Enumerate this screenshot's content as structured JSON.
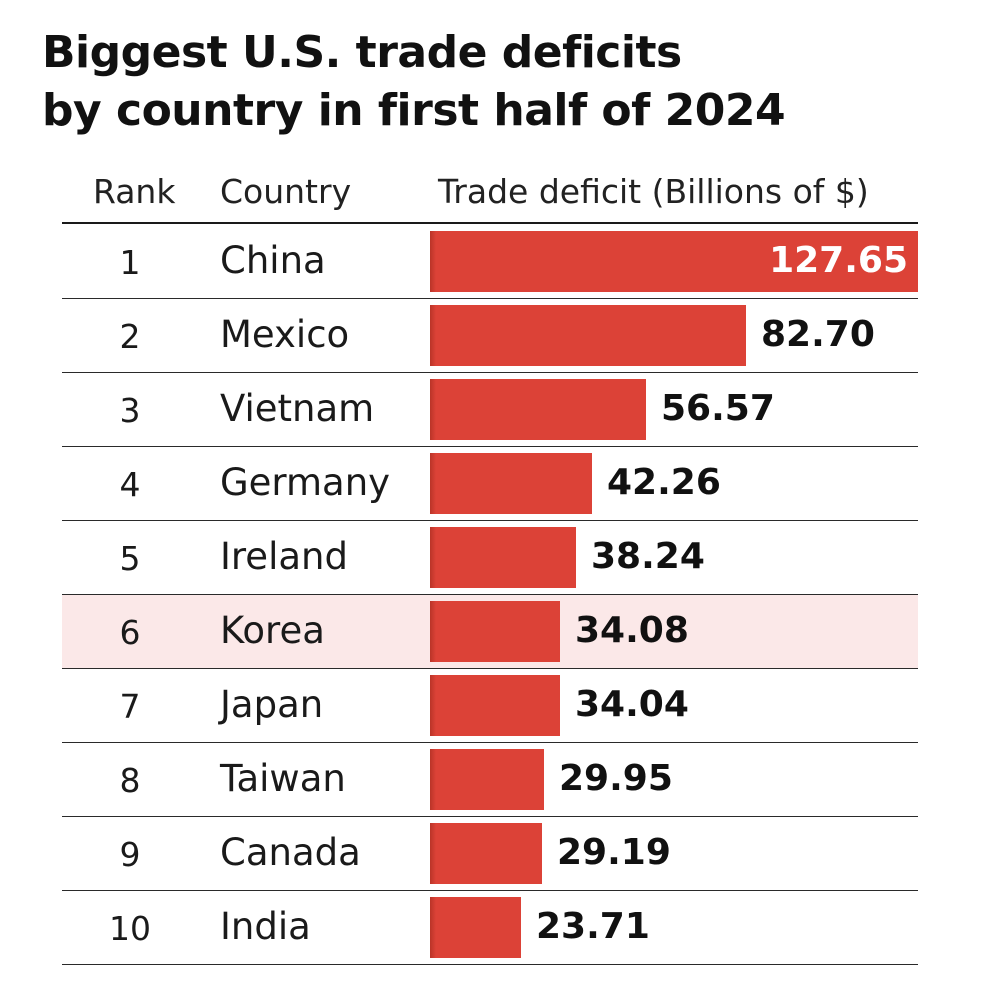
{
  "title": {
    "line1": "Biggest U.S. trade deficits",
    "line2": "by country in first half of 2024"
  },
  "header": {
    "rank": "Rank",
    "country": "Country",
    "deficit": "Trade deficit (Billions of $)"
  },
  "colors": {
    "bar": "#dc4237",
    "highlight_row": "#fbe8e8",
    "inside_label": "#ffffff",
    "text": "#111111"
  },
  "chart_data": {
    "type": "bar",
    "orientation": "horizontal",
    "title": "Biggest U.S. trade deficits by country in first half of 2024",
    "xlabel": "Trade deficit (Billions of $)",
    "ylabel": "Country",
    "categories": [
      "China",
      "Mexico",
      "Vietnam",
      "Germany",
      "Ireland",
      "Korea",
      "Japan",
      "Taiwan",
      "Canada",
      "India"
    ],
    "values": [
      127.65,
      82.7,
      56.57,
      42.26,
      38.24,
      34.08,
      34.04,
      29.95,
      29.19,
      23.71
    ],
    "xlim": [
      0,
      127.65
    ],
    "highlighted": "Korea",
    "rows": [
      {
        "rank": "1",
        "country": "China",
        "value": 127.65,
        "label": "127.65"
      },
      {
        "rank": "2",
        "country": "Mexico",
        "value": 82.7,
        "label": "82.70"
      },
      {
        "rank": "3",
        "country": "Vietnam",
        "value": 56.57,
        "label": "56.57"
      },
      {
        "rank": "4",
        "country": "Germany",
        "value": 42.26,
        "label": "42.26"
      },
      {
        "rank": "5",
        "country": "Ireland",
        "value": 38.24,
        "label": "38.24"
      },
      {
        "rank": "6",
        "country": "Korea",
        "value": 34.08,
        "label": "34.08",
        "highlight": true
      },
      {
        "rank": "7",
        "country": "Japan",
        "value": 34.04,
        "label": "34.04"
      },
      {
        "rank": "8",
        "country": "Taiwan",
        "value": 29.95,
        "label": "29.95"
      },
      {
        "rank": "9",
        "country": "Canada",
        "value": 29.19,
        "label": "29.19"
      },
      {
        "rank": "10",
        "country": "India",
        "value": 23.71,
        "label": "23.71"
      }
    ]
  }
}
